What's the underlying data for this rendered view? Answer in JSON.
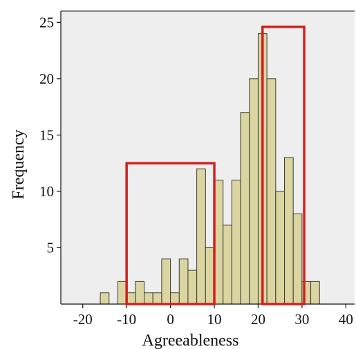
{
  "chart_data": {
    "type": "histogram",
    "xlabel": "Agreeableness",
    "ylabel": "Frequency",
    "xlim": [
      -25,
      42
    ],
    "ylim": [
      0,
      26
    ],
    "xticks": [
      -20,
      -10,
      0,
      10,
      20,
      30,
      40
    ],
    "yticks": [
      5,
      10,
      15,
      20,
      25
    ],
    "bin_width": 2,
    "bins": [
      {
        "x": -15,
        "count": 1
      },
      {
        "x": -11,
        "count": 2
      },
      {
        "x": -9,
        "count": 1
      },
      {
        "x": -7,
        "count": 2
      },
      {
        "x": -5,
        "count": 1
      },
      {
        "x": -3,
        "count": 1
      },
      {
        "x": -1,
        "count": 4
      },
      {
        "x": 1,
        "count": 1
      },
      {
        "x": 3,
        "count": 4
      },
      {
        "x": 5,
        "count": 3
      },
      {
        "x": 7,
        "count": 12
      },
      {
        "x": 9,
        "count": 5
      },
      {
        "x": 11,
        "count": 11
      },
      {
        "x": 13,
        "count": 7
      },
      {
        "x": 15,
        "count": 11
      },
      {
        "x": 17,
        "count": 17
      },
      {
        "x": 19,
        "count": 20
      },
      {
        "x": 21,
        "count": 24
      },
      {
        "x": 23,
        "count": 20
      },
      {
        "x": 25,
        "count": 10
      },
      {
        "x": 27,
        "count": 13
      },
      {
        "x": 29,
        "count": 8
      },
      {
        "x": 31,
        "count": 2
      },
      {
        "x": 33,
        "count": 2
      }
    ],
    "highlight_regions": [
      {
        "x": [
          -10,
          10
        ],
        "y": [
          0,
          12.5
        ]
      },
      {
        "x": [
          21,
          30.5
        ],
        "y": [
          0,
          24.6
        ]
      }
    ],
    "colors": {
      "plot_background": "#eeeeee",
      "bar_fill": "#dbd5a2",
      "bar_stroke": "#3a3a30",
      "highlight": "#d02020",
      "axis": "#111111"
    }
  }
}
